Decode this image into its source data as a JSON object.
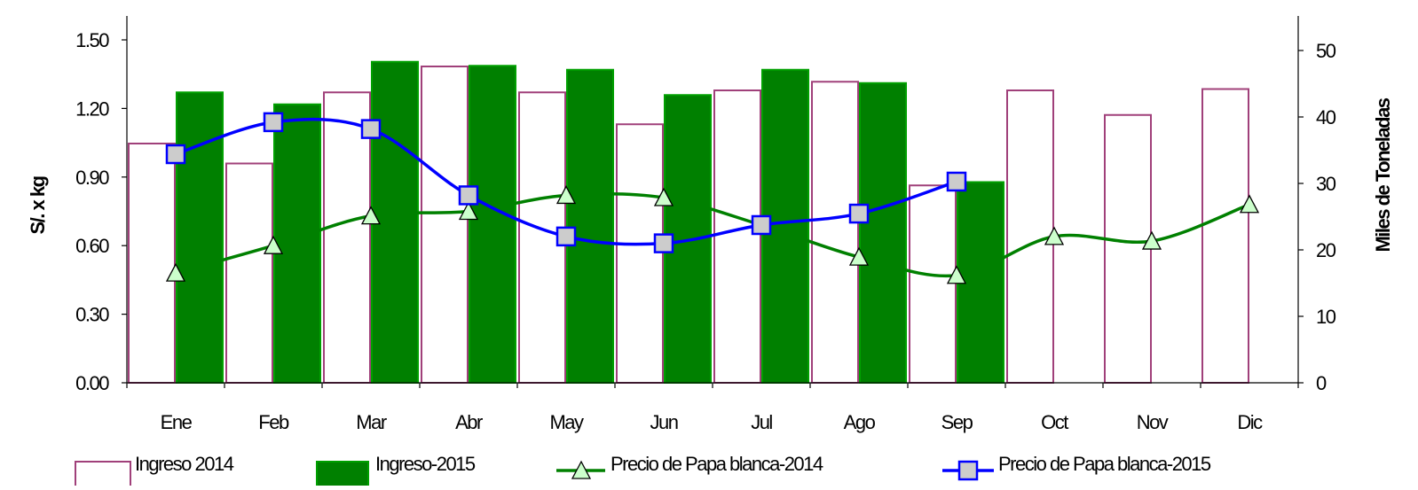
{
  "chart_data": {
    "type": "bar",
    "categories": [
      "Ene",
      "Feb",
      "Mar",
      "Abr",
      "May",
      "Jun",
      "Jul",
      "Ago",
      "Sep",
      "Oct",
      "Nov",
      "Dic"
    ],
    "bar_series": [
      {
        "name": "Ingreso 2014",
        "axis": "right",
        "fill": "#ffffff",
        "stroke": "#a0407a",
        "values": [
          36,
          33,
          43.7,
          47.6,
          43.7,
          38.9,
          44,
          45.3,
          29.7,
          44,
          40.3,
          44.2
        ]
      },
      {
        "name": "Ingreso-2015",
        "axis": "right",
        "fill": "#008000",
        "stroke": "#00a000",
        "values": [
          43.7,
          41.9,
          48.3,
          47.7,
          47.1,
          43.3,
          47.1,
          45.1,
          30.2,
          null,
          null,
          null
        ]
      }
    ],
    "line_series": [
      {
        "name": "Precio de Papa blanca-2014",
        "axis": "left",
        "color": "#008000",
        "marker": "triangle",
        "marker_fill": "#ccffcc",
        "values": [
          0.48,
          0.6,
          0.73,
          0.75,
          0.82,
          0.81,
          0.69,
          0.55,
          0.47,
          0.64,
          0.62,
          0.78
        ]
      },
      {
        "name": "Precio de Papa blanca-2015",
        "axis": "left",
        "color": "#0000ff",
        "marker": "square",
        "marker_fill": "#cccccc",
        "values": [
          1.0,
          1.14,
          1.11,
          0.82,
          0.64,
          0.61,
          0.69,
          0.74,
          0.88,
          null,
          null,
          null
        ]
      }
    ],
    "left_axis": {
      "label": "S/. x kg",
      "ylim": [
        0,
        1.5
      ],
      "ticks": [
        0,
        0.3,
        0.6,
        0.9,
        1.2,
        1.5
      ],
      "tick_labels": [
        "0.00",
        "0.30",
        "0.60",
        "0.90",
        "1.20",
        "1.50"
      ]
    },
    "right_axis": {
      "label": "Miles de Toneladas",
      "ylim": [
        0,
        50
      ],
      "ticks": [
        0,
        10,
        20,
        30,
        40,
        50
      ],
      "tick_labels": [
        "0",
        "10",
        "20",
        "30",
        "40",
        "50"
      ]
    },
    "grid": false,
    "legend_position": "bottom"
  }
}
